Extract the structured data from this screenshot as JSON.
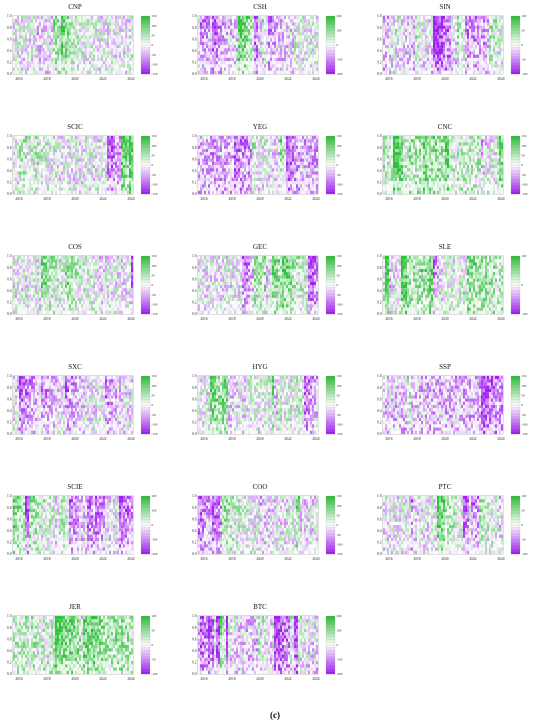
{
  "figure": {
    "caption": "(c)"
  },
  "colors": {
    "positive": "#2fbf3a",
    "positive_light": "#b8f0bd",
    "negative": "#a020f0",
    "negative_light": "#e4c8f7",
    "neutral": "#ffffff",
    "cyan_accent": "#33ffff"
  },
  "chart_data": [
    {
      "type": "heatmap",
      "title": "CNP",
      "x_ticks": [
        "2016",
        "2018",
        "2020",
        "2022",
        "2024"
      ],
      "y_ticks": [
        "0.0",
        "0.2",
        "0.4",
        "0.6",
        "0.8",
        "1.0"
      ],
      "colorbar_ticks": [
        "-150",
        "-100",
        "-50",
        "0",
        "50",
        "100",
        "150"
      ],
      "dominant": "mixed"
    },
    {
      "type": "heatmap",
      "title": "CSH",
      "x_ticks": [
        "2016",
        "2018",
        "2020",
        "2022",
        "2024"
      ],
      "y_ticks": [
        "0.0",
        "0.2",
        "0.4",
        "0.6",
        "0.8",
        "1.0"
      ],
      "colorbar_ticks": [
        "-200",
        "-100",
        "0",
        "100",
        "200"
      ],
      "dominant": "mixed"
    },
    {
      "type": "heatmap",
      "title": "SIN",
      "x_ticks": [
        "2016",
        "2018",
        "2020",
        "2022",
        "2024"
      ],
      "y_ticks": [
        "0.0",
        "0.2",
        "0.4",
        "0.6",
        "0.8",
        "1.0"
      ],
      "colorbar_ticks": [
        "-100",
        "-50",
        "0",
        "50",
        "100"
      ],
      "dominant": "negative"
    },
    {
      "type": "heatmap",
      "title": "SCIC",
      "x_ticks": [
        "2016",
        "2018",
        "2020",
        "2022",
        "2024"
      ],
      "y_ticks": [
        "0.0",
        "0.2",
        "0.4",
        "0.6",
        "0.8",
        "1.0"
      ],
      "colorbar_ticks": [
        "-150",
        "-100",
        "-50",
        "0",
        "50",
        "100",
        "150"
      ],
      "dominant": "mixed"
    },
    {
      "type": "heatmap",
      "title": "YEG",
      "x_ticks": [
        "2016",
        "2018",
        "2020",
        "2022",
        "2024"
      ],
      "y_ticks": [
        "0.0",
        "0.2",
        "0.4",
        "0.6",
        "0.8",
        "1.0"
      ],
      "colorbar_ticks": [
        "-150",
        "-100",
        "-50",
        "0",
        "50",
        "100",
        "150"
      ],
      "dominant": "negative"
    },
    {
      "type": "heatmap",
      "title": "CNC",
      "x_ticks": [
        "2016",
        "2018",
        "2020",
        "2022",
        "2024"
      ],
      "y_ticks": [
        "0.0",
        "0.2",
        "0.4",
        "0.6",
        "0.8",
        "1.0"
      ],
      "colorbar_ticks": [
        "-150",
        "-100",
        "-50",
        "0",
        "50",
        "100",
        "150"
      ],
      "dominant": "positive"
    },
    {
      "type": "heatmap",
      "title": "COS",
      "x_ticks": [
        "2016",
        "2018",
        "2020",
        "2022",
        "2024"
      ],
      "y_ticks": [
        "0.0",
        "0.2",
        "0.4",
        "0.6",
        "0.8",
        "1.0"
      ],
      "colorbar_ticks": [
        "-150",
        "-100",
        "-50",
        "0",
        "50",
        "100",
        "150"
      ],
      "dominant": "mixed"
    },
    {
      "type": "heatmap",
      "title": "GEC",
      "x_ticks": [
        "2016",
        "2018",
        "2020",
        "2022",
        "2024"
      ],
      "y_ticks": [
        "0.0",
        "0.2",
        "0.4",
        "0.6",
        "0.8",
        "1.0"
      ],
      "colorbar_ticks": [
        "-150",
        "-100",
        "-50",
        "0",
        "50",
        "100",
        "150"
      ],
      "dominant": "mixed"
    },
    {
      "type": "heatmap",
      "title": "SLE",
      "x_ticks": [
        "2016",
        "2018",
        "2020",
        "2022",
        "2024"
      ],
      "y_ticks": [
        "0.0",
        "0.2",
        "0.4",
        "0.6",
        "0.8",
        "1.0"
      ],
      "colorbar_ticks": [
        "-100",
        "0",
        "100"
      ],
      "dominant": "positive"
    },
    {
      "type": "heatmap",
      "title": "SXC",
      "x_ticks": [
        "2016",
        "2018",
        "2020",
        "2022",
        "2024"
      ],
      "y_ticks": [
        "0.0",
        "0.2",
        "0.4",
        "0.6",
        "0.8",
        "1.0"
      ],
      "colorbar_ticks": [
        "-150",
        "-100",
        "-50",
        "0",
        "50",
        "100",
        "150"
      ],
      "dominant": "mixed"
    },
    {
      "type": "heatmap",
      "title": "HYG",
      "x_ticks": [
        "2016",
        "2018",
        "2020",
        "2022",
        "2024"
      ],
      "y_ticks": [
        "0.0",
        "0.2",
        "0.4",
        "0.6",
        "0.8",
        "1.0"
      ],
      "colorbar_ticks": [
        "-150",
        "-100",
        "-50",
        "0",
        "50",
        "100",
        "150"
      ],
      "dominant": "mixed"
    },
    {
      "type": "heatmap",
      "title": "SSP",
      "x_ticks": [
        "2016",
        "2018",
        "2020",
        "2022",
        "2024"
      ],
      "y_ticks": [
        "0.0",
        "0.2",
        "0.4",
        "0.6",
        "0.8",
        "1.0"
      ],
      "colorbar_ticks": [
        "-150",
        "-100",
        "-50",
        "0",
        "50",
        "100",
        "150"
      ],
      "dominant": "negative"
    },
    {
      "type": "heatmap",
      "title": "SCIE",
      "x_ticks": [
        "2016",
        "2018",
        "2020",
        "2022",
        "2024"
      ],
      "y_ticks": [
        "0.0",
        "0.2",
        "0.4",
        "0.6",
        "0.8",
        "1.0"
      ],
      "colorbar_ticks": [
        "-200",
        "-100",
        "0",
        "100",
        "200"
      ],
      "dominant": "mixed"
    },
    {
      "type": "heatmap",
      "title": "COO",
      "x_ticks": [
        "2016",
        "2018",
        "2020",
        "2022",
        "2024"
      ],
      "y_ticks": [
        "0.0",
        "0.2",
        "0.4",
        "0.6",
        "0.8",
        "1.0"
      ],
      "colorbar_ticks": [
        "-150",
        "-100",
        "-50",
        "0",
        "50",
        "100",
        "150"
      ],
      "dominant": "mixed"
    },
    {
      "type": "heatmap",
      "title": "PTC",
      "x_ticks": [
        "2016",
        "2018",
        "2020",
        "2022",
        "2024"
      ],
      "y_ticks": [
        "0.0",
        "0.2",
        "0.4",
        "0.6",
        "0.8",
        "1.0"
      ],
      "colorbar_ticks": [
        "-100",
        "-50",
        "0",
        "50",
        "100"
      ],
      "dominant": "mixed"
    },
    {
      "type": "heatmap",
      "title": "JER",
      "x_ticks": [
        "2016",
        "2018",
        "2020",
        "2022",
        "2024"
      ],
      "y_ticks": [
        "0.0",
        "0.2",
        "0.4",
        "0.6",
        "0.8",
        "1.0"
      ],
      "colorbar_ticks": [
        "-100",
        "-50",
        "0",
        "50",
        "100"
      ],
      "dominant": "positive"
    },
    {
      "type": "heatmap",
      "title": "BTC",
      "x_ticks": [
        "2016",
        "2018",
        "2020",
        "2022",
        "2024"
      ],
      "y_ticks": [
        "0.0",
        "0.2",
        "0.4",
        "0.6",
        "0.8",
        "1.0"
      ],
      "colorbar_ticks": [
        "-200",
        "-100",
        "0",
        "100",
        "200"
      ],
      "dominant": "negative"
    }
  ]
}
